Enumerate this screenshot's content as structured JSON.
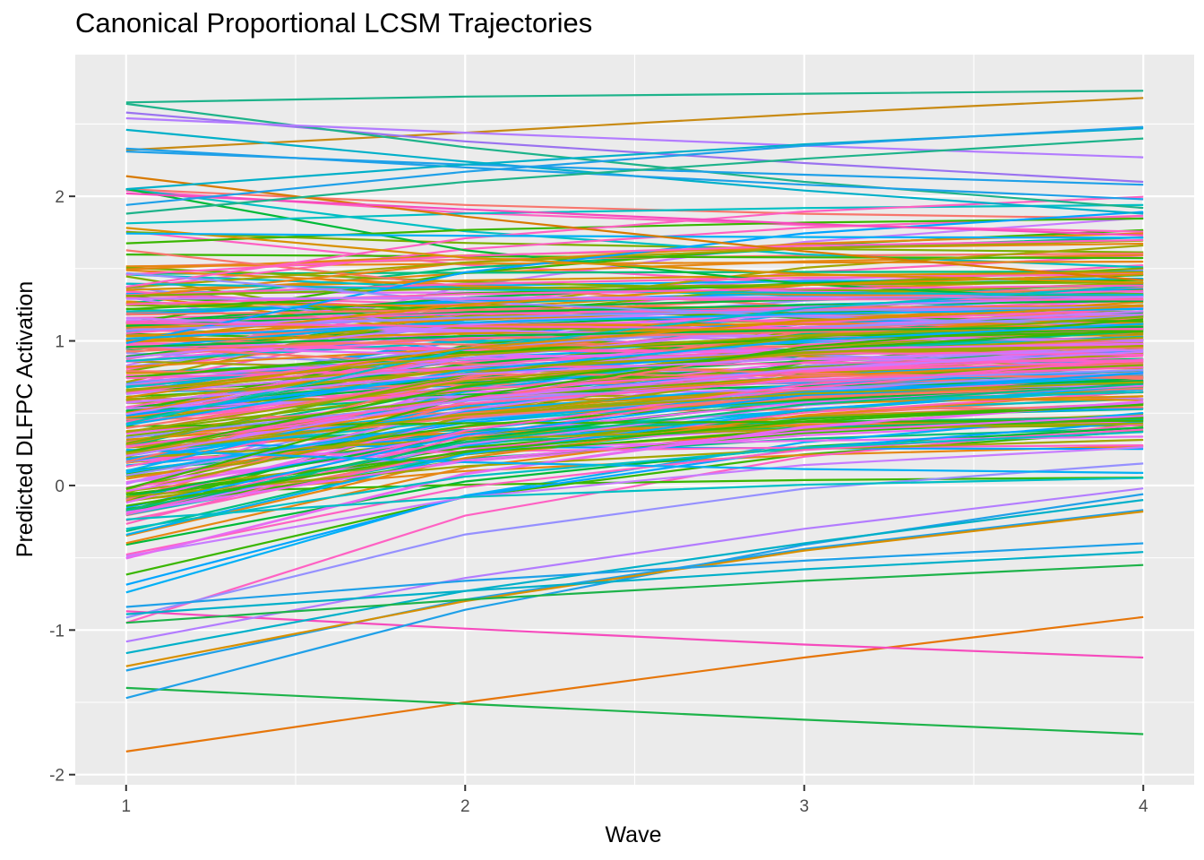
{
  "chart_data": {
    "type": "line",
    "title": "Canonical Proportional LCSM Trajectories",
    "xlabel": "Wave",
    "ylabel": "Predicted DLFPC Activation",
    "x": [
      1,
      2,
      3,
      4
    ],
    "xticks": [
      "1",
      "2",
      "3",
      "4"
    ],
    "yticks": [
      "-2",
      "-1",
      "0",
      "1",
      "2"
    ],
    "xlim": [
      0.85,
      4.15
    ],
    "ylim": [
      -2.07,
      2.98
    ],
    "grid": true,
    "legend": "none",
    "n_series": 320,
    "palette": [
      "#F8766D",
      "#D89000",
      "#A3A500",
      "#39B600",
      "#00BF7D",
      "#00BFC4",
      "#00B0F6",
      "#9590FF",
      "#E76BF3",
      "#FF62BC",
      "#C77CFF",
      "#00A5FF",
      "#E68613",
      "#00BA38",
      "#FF61C3",
      "#7CAE00"
    ],
    "series": [
      {
        "values": [
          -1.84,
          -1.5,
          -1.19,
          -0.91
        ],
        "color": "#E6760A"
      },
      {
        "values": [
          -1.4,
          -1.51,
          -1.62,
          -1.72
        ],
        "color": "#1DB34A"
      },
      {
        "values": [
          -0.87,
          -0.99,
          -1.1,
          -1.19
        ],
        "color": "#F64BBD"
      },
      {
        "values": [
          -1.47,
          -0.86,
          -0.41,
          -0.06
        ],
        "color": "#1FA0E8"
      },
      {
        "values": [
          -1.28,
          -0.79,
          -0.44,
          -0.17
        ],
        "color": "#1FA0E8"
      },
      {
        "values": [
          -1.25,
          -0.8,
          -0.45,
          -0.18
        ],
        "color": "#D89000"
      },
      {
        "values": [
          -1.16,
          -0.73,
          -0.4,
          -0.1
        ],
        "color": "#00B0C9"
      },
      {
        "values": [
          -1.08,
          -0.64,
          -0.3,
          -0.02
        ],
        "color": "#B37CFF"
      },
      {
        "values": [
          -0.95,
          -0.79,
          -0.66,
          -0.55
        ],
        "color": "#1DB34A"
      },
      {
        "values": [
          -0.89,
          -0.73,
          -0.58,
          -0.46
        ],
        "color": "#00B0C9"
      },
      {
        "values": [
          -0.84,
          -0.66,
          -0.52,
          -0.4
        ],
        "color": "#1FA0E8"
      },
      {
        "values": [
          2.32,
          2.44,
          2.57,
          2.68
        ],
        "color": "#C88A12"
      },
      {
        "values": [
          2.65,
          2.69,
          2.71,
          2.73
        ],
        "color": "#1DB38A"
      },
      {
        "values": [
          2.58,
          2.38,
          2.23,
          2.1
        ],
        "color": "#9A72F0"
      },
      {
        "values": [
          2.64,
          2.34,
          2.1,
          1.92
        ],
        "color": "#1DB38A"
      },
      {
        "values": [
          2.46,
          2.24,
          2.04,
          1.88
        ],
        "color": "#00B0C9"
      },
      {
        "values": [
          2.54,
          2.44,
          2.35,
          2.27
        ],
        "color": "#B37CFF"
      },
      {
        "values": [
          2.33,
          2.2,
          2.08,
          1.98
        ],
        "color": "#1FA0E8"
      },
      {
        "values": [
          2.31,
          2.22,
          2.15,
          2.08
        ],
        "color": "#1FA0E8"
      },
      {
        "values": [
          2.14,
          1.86,
          1.62,
          1.42
        ],
        "color": "#D87A00"
      },
      {
        "values": [
          2.05,
          2.22,
          2.36,
          2.47
        ],
        "color": "#00B0C9"
      },
      {
        "values": [
          2.02,
          1.91,
          1.81,
          1.73
        ],
        "color": "#F64BBD"
      },
      {
        "values": [
          1.94,
          2.17,
          2.35,
          2.48
        ],
        "color": "#1FA0E8"
      },
      {
        "values": [
          1.88,
          2.1,
          2.26,
          2.4
        ],
        "color": "#1DB38A"
      }
    ]
  }
}
